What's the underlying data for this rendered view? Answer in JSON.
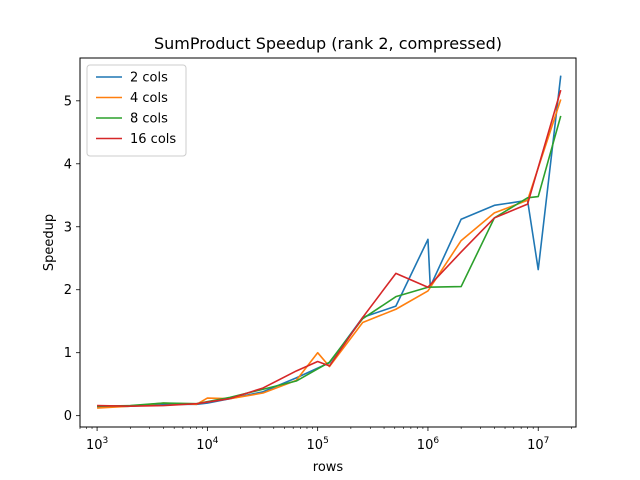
{
  "chart_data": {
    "type": "line",
    "title": "SumProduct Speedup (rank 2, compressed)",
    "xlabel": "rows",
    "ylabel": "Speedup",
    "xscale": "log",
    "xlim": [
      700,
      22000000
    ],
    "ylim": [
      -0.18,
      5.68
    ],
    "x_ticks": [
      {
        "value": 1000,
        "base": "10",
        "exp": "3"
      },
      {
        "value": 10000,
        "base": "10",
        "exp": "4"
      },
      {
        "value": 100000,
        "base": "10",
        "exp": "5"
      },
      {
        "value": 1000000,
        "base": "10",
        "exp": "6"
      },
      {
        "value": 10000000,
        "base": "10",
        "exp": "7"
      }
    ],
    "y_ticks": [
      0,
      1,
      2,
      3,
      4,
      5
    ],
    "grid": false,
    "legend_position": "top-left",
    "series": [
      {
        "name": "2 cols",
        "color": "#1f77b4",
        "x": [
          1000,
          2000,
          4000,
          8000,
          10000,
          16000,
          32000,
          64000,
          128000,
          256000,
          512000,
          1000000,
          1050000,
          2000000,
          4000000,
          8000000,
          10000000,
          16000000
        ],
        "y": [
          0.14,
          0.15,
          0.18,
          0.18,
          0.2,
          0.27,
          0.38,
          0.6,
          0.84,
          1.56,
          1.74,
          2.8,
          2.05,
          3.12,
          3.34,
          3.42,
          2.32,
          5.4
        ]
      },
      {
        "name": "4 cols",
        "color": "#ff7f0e",
        "x": [
          1000,
          2000,
          4000,
          8000,
          10000,
          16000,
          32000,
          64000,
          100000,
          128000,
          256000,
          512000,
          1000000,
          2000000,
          4000000,
          8000000,
          16000000
        ],
        "y": [
          0.12,
          0.15,
          0.2,
          0.18,
          0.28,
          0.27,
          0.36,
          0.56,
          1.0,
          0.78,
          1.48,
          1.69,
          1.98,
          2.78,
          3.22,
          3.42,
          5.02
        ]
      },
      {
        "name": "8 cols",
        "color": "#2ca02c",
        "x": [
          1000,
          2000,
          4000,
          8000,
          16000,
          32000,
          64000,
          128000,
          256000,
          512000,
          1000000,
          2000000,
          4000000,
          8000000,
          10000000,
          16000000
        ],
        "y": [
          0.15,
          0.16,
          0.2,
          0.19,
          0.29,
          0.42,
          0.55,
          0.85,
          1.54,
          1.89,
          2.04,
          2.05,
          3.14,
          3.46,
          3.48,
          4.76
        ]
      },
      {
        "name": "16 cols",
        "color": "#d62728",
        "x": [
          1000,
          2000,
          4000,
          8000,
          16000,
          32000,
          64000,
          100000,
          128000,
          256000,
          512000,
          1000000,
          2000000,
          4000000,
          8000000,
          16000000
        ],
        "y": [
          0.16,
          0.15,
          0.16,
          0.19,
          0.27,
          0.44,
          0.71,
          0.86,
          0.79,
          1.56,
          2.26,
          2.04,
          2.6,
          3.14,
          3.36,
          5.17
        ]
      }
    ]
  }
}
